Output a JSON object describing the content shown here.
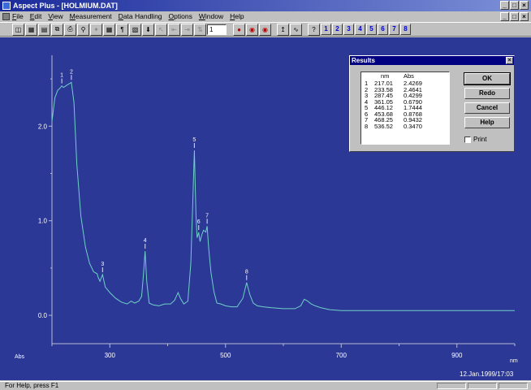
{
  "window": {
    "title": "Aspect Plus - [HOLMIUM.DAT]",
    "min": "_",
    "max": "□",
    "close": "×"
  },
  "menu": [
    "File",
    "Edit",
    "View",
    "Measurement",
    "Data Handling",
    "Options",
    "Window",
    "Help"
  ],
  "toolbar": {
    "value": "1",
    "numbers": [
      "1",
      "2",
      "3",
      "4",
      "5",
      "6",
      "7",
      "8"
    ]
  },
  "results": {
    "title": "Results",
    "col_nm": "nm",
    "col_abs": "Abs",
    "rows": [
      [
        "1",
        "217.01",
        "2.4269"
      ],
      [
        "2",
        "233.58",
        "2.4641"
      ],
      [
        "3",
        "287.45",
        "0.4299"
      ],
      [
        "4",
        "361.05",
        "0.6790"
      ],
      [
        "5",
        "446.12",
        "1.7444"
      ],
      [
        "6",
        "453.68",
        "0.8768"
      ],
      [
        "7",
        "468.25",
        "0.9432"
      ],
      [
        "8",
        "536.52",
        "0.3470"
      ]
    ],
    "buttons": {
      "ok": "OK",
      "redo": "Redo",
      "cancel": "Cancel",
      "help": "Help"
    },
    "print_label": "Print"
  },
  "timestamp": "12.Jan.1999/17:03",
  "status": "For Help, press F1",
  "chart_data": {
    "type": "line",
    "xlabel": "nm",
    "ylabel": "Abs",
    "xlim": [
      200,
      1000
    ],
    "ylim": [
      -0.3,
      2.75
    ],
    "x_ticks": [
      300,
      500,
      700,
      900
    ],
    "y_ticks": [
      "0.0",
      "1.0",
      "2.0"
    ],
    "peak_labels": [
      "1",
      "2",
      "3",
      "4",
      "5",
      "6",
      "7",
      "8"
    ],
    "line_color": "#6fd0c8",
    "series": [
      {
        "x": [
          200,
          205,
          210,
          215,
          217.01,
          220,
          225,
          230,
          233.58,
          238,
          243,
          250,
          258,
          265,
          272,
          278,
          280,
          283,
          287.45,
          292,
          300,
          310,
          320,
          330,
          337,
          343,
          350,
          355,
          358,
          361.05,
          364,
          368,
          375,
          385,
          395,
          405,
          412,
          418,
          422,
          428,
          435,
          440,
          443,
          446.12,
          449,
          451,
          453.68,
          456,
          459,
          462,
          466,
          468.25,
          471,
          475,
          480,
          485,
          492,
          500,
          510,
          520,
          530,
          536.52,
          542,
          548,
          555,
          565,
          580,
          600,
          620,
          630,
          636,
          642,
          648,
          655,
          665,
          680,
          700,
          750,
          800,
          850,
          900,
          950,
          1000
        ],
        "y": [
          2.05,
          2.3,
          2.38,
          2.41,
          2.4269,
          2.41,
          2.43,
          2.45,
          2.4641,
          2.25,
          1.6,
          1.05,
          0.72,
          0.55,
          0.46,
          0.44,
          0.4,
          0.36,
          0.4299,
          0.3,
          0.24,
          0.18,
          0.14,
          0.12,
          0.15,
          0.13,
          0.15,
          0.2,
          0.42,
          0.679,
          0.35,
          0.13,
          0.11,
          0.1,
          0.12,
          0.12,
          0.16,
          0.24,
          0.18,
          0.12,
          0.15,
          0.55,
          1.1,
          1.7444,
          1.05,
          0.82,
          0.8768,
          0.78,
          0.85,
          0.9,
          0.88,
          0.9432,
          0.7,
          0.45,
          0.25,
          0.13,
          0.12,
          0.1,
          0.09,
          0.09,
          0.18,
          0.347,
          0.22,
          0.13,
          0.1,
          0.09,
          0.08,
          0.07,
          0.07,
          0.1,
          0.17,
          0.15,
          0.12,
          0.1,
          0.08,
          0.06,
          0.05,
          0.05,
          0.05,
          0.05,
          0.05,
          0.05,
          0.05
        ]
      }
    ]
  }
}
